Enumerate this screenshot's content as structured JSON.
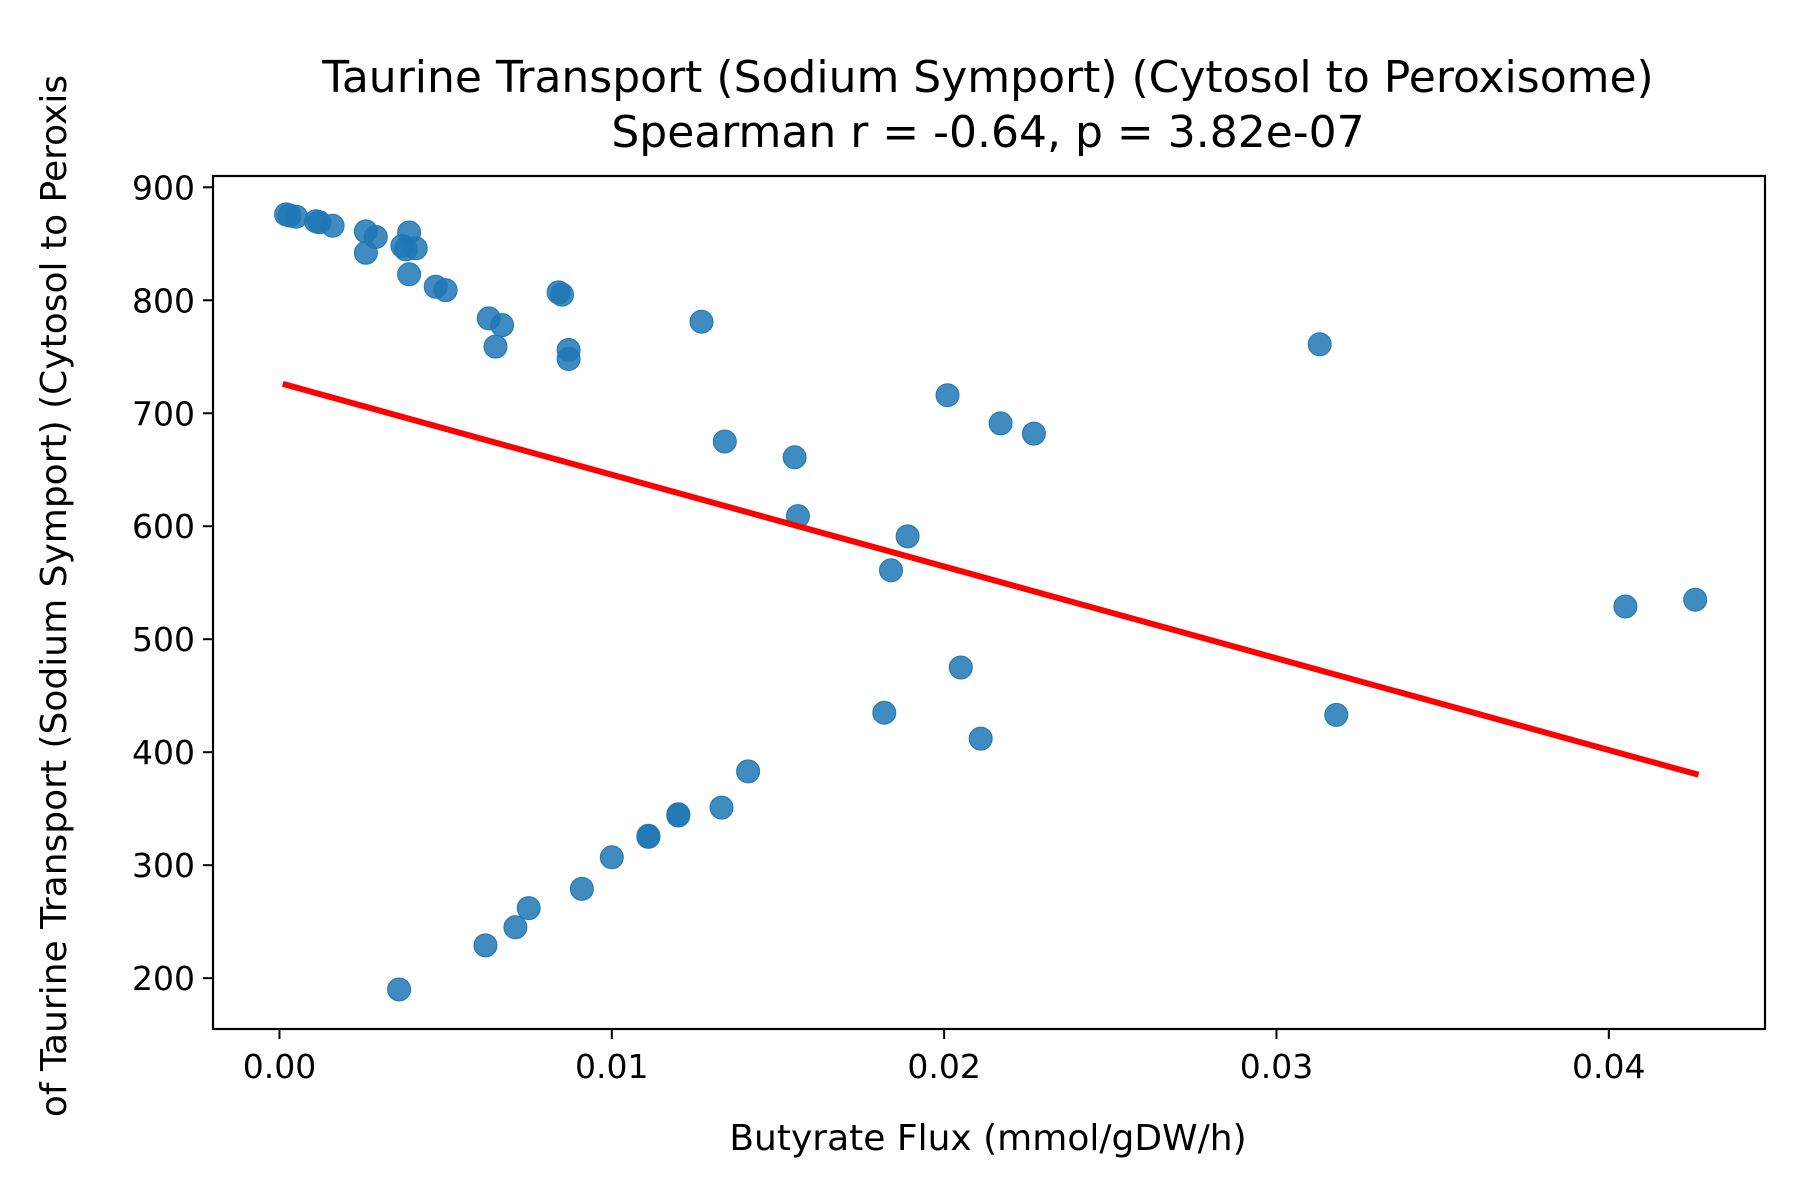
{
  "chart_data": {
    "type": "scatter",
    "title": "Taurine Transport (Sodium Symport) (Cytosol to Peroxisome)",
    "subtitle": "Spearman r = -0.64, p = 3.82e-07",
    "xlabel": "Butyrate Flux (mmol/gDW/h)",
    "ylabel": "of Taurine Transport (Sodium Symport) (Cytosol to Peroxis",
    "xlim": [
      -0.002,
      0.0447
    ],
    "ylim": [
      155,
      910
    ],
    "x_ticks": [
      0.0,
      0.01,
      0.02,
      0.03,
      0.04
    ],
    "x_tick_labels": [
      "0.00",
      "0.01",
      "0.02",
      "0.03",
      "0.04"
    ],
    "y_ticks": [
      200,
      300,
      400,
      500,
      600,
      700,
      800,
      900
    ],
    "y_tick_labels": [
      "200",
      "300",
      "400",
      "500",
      "600",
      "700",
      "800",
      "900"
    ],
    "grid": false,
    "point_color": "#1f77b4",
    "line_color": "#ff0000",
    "trend_line": {
      "x": [
        0.0001,
        0.0427
      ],
      "y": [
        726,
        380
      ]
    },
    "points": [
      {
        "x": 0.0002,
        "y": 876
      },
      {
        "x": 0.0003,
        "y": 875
      },
      {
        "x": 0.0005,
        "y": 874
      },
      {
        "x": 0.0011,
        "y": 870
      },
      {
        "x": 0.0012,
        "y": 869
      },
      {
        "x": 0.0016,
        "y": 866
      },
      {
        "x": 0.0026,
        "y": 861
      },
      {
        "x": 0.0029,
        "y": 856
      },
      {
        "x": 0.0026,
        "y": 842
      },
      {
        "x": 0.0037,
        "y": 848
      },
      {
        "x": 0.0039,
        "y": 860
      },
      {
        "x": 0.0041,
        "y": 846
      },
      {
        "x": 0.0038,
        "y": 845
      },
      {
        "x": 0.0039,
        "y": 823
      },
      {
        "x": 0.0047,
        "y": 812
      },
      {
        "x": 0.005,
        "y": 809
      },
      {
        "x": 0.0063,
        "y": 784
      },
      {
        "x": 0.0067,
        "y": 778
      },
      {
        "x": 0.0065,
        "y": 759
      },
      {
        "x": 0.0084,
        "y": 807
      },
      {
        "x": 0.0085,
        "y": 805
      },
      {
        "x": 0.0087,
        "y": 756
      },
      {
        "x": 0.0087,
        "y": 748
      },
      {
        "x": 0.0127,
        "y": 781
      },
      {
        "x": 0.0134,
        "y": 675
      },
      {
        "x": 0.0155,
        "y": 661
      },
      {
        "x": 0.0156,
        "y": 609
      },
      {
        "x": 0.0189,
        "y": 591
      },
      {
        "x": 0.0184,
        "y": 561
      },
      {
        "x": 0.0201,
        "y": 716
      },
      {
        "x": 0.0217,
        "y": 691
      },
      {
        "x": 0.0227,
        "y": 682
      },
      {
        "x": 0.0313,
        "y": 761
      },
      {
        "x": 0.0405,
        "y": 529
      },
      {
        "x": 0.0426,
        "y": 535
      },
      {
        "x": 0.0318,
        "y": 433
      },
      {
        "x": 0.0205,
        "y": 475
      },
      {
        "x": 0.0182,
        "y": 435
      },
      {
        "x": 0.0211,
        "y": 412
      },
      {
        "x": 0.0141,
        "y": 383
      },
      {
        "x": 0.0133,
        "y": 351
      },
      {
        "x": 0.012,
        "y": 345
      },
      {
        "x": 0.012,
        "y": 344
      },
      {
        "x": 0.0111,
        "y": 326
      },
      {
        "x": 0.0111,
        "y": 325
      },
      {
        "x": 0.01,
        "y": 307
      },
      {
        "x": 0.0091,
        "y": 279
      },
      {
        "x": 0.0075,
        "y": 262
      },
      {
        "x": 0.0071,
        "y": 245
      },
      {
        "x": 0.0062,
        "y": 229
      },
      {
        "x": 0.0036,
        "y": 190
      }
    ]
  }
}
